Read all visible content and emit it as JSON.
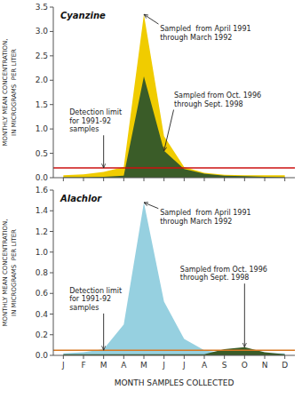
{
  "chart_data": [
    {
      "type": "area",
      "title": "Cyanzine",
      "categories": [
        "J",
        "F",
        "M",
        "A",
        "M",
        "J",
        "J",
        "A",
        "S",
        "O",
        "N",
        "D"
      ],
      "series": [
        {
          "name": "Sampled  from April 1991\nthrough March 1992",
          "color": "#F0CC00",
          "values": [
            0.05,
            0.07,
            0.12,
            0.22,
            3.35,
            0.85,
            0.22,
            0.1,
            0.06,
            0.05,
            0.05,
            0.05
          ]
        },
        {
          "name": "Sampled from Oct. 1996\nthrough Sept. 1998",
          "color": "#3A5C28",
          "values": [
            0.01,
            0.01,
            0.02,
            0.04,
            2.08,
            0.55,
            0.18,
            0.08,
            0.04,
            0.03,
            0.02,
            0.01
          ]
        }
      ],
      "detection_limit": {
        "value": 0.2,
        "label": "Detection limit\nfor 1991-92\nsamples",
        "color": "#CC1111"
      },
      "y_label": "MONTHLY MEAN CONCENTRATION,\nIN MICROGRAMS  PER LITER",
      "ylim": [
        0,
        3.5
      ],
      "yticks": [
        {
          "value": 0,
          "label": "0.0"
        },
        0.5,
        {
          "value": 1.0,
          "label": "1.0"
        },
        1.5,
        {
          "value": 2.0,
          "label": "2.0"
        },
        2.5,
        {
          "value": 3.0,
          "label": "3.0"
        },
        3.5
      ],
      "grid": false,
      "tick_labels": "y"
    },
    {
      "type": "area",
      "title": "Alachlor",
      "categories": [
        "J",
        "F",
        "M",
        "A",
        "M",
        "J",
        "J",
        "A",
        "S",
        "O",
        "N",
        "D"
      ],
      "series": [
        {
          "name": "Sampled  from April 1991\nthrough March 1992",
          "color": "#96D0E0",
          "values": [
            0.02,
            0.03,
            0.06,
            0.3,
            1.48,
            0.52,
            0.16,
            0.05,
            0.02,
            0.02,
            0.02,
            0.02
          ]
        },
        {
          "name": "Sampled from Oct. 1996\nthrough Sept. 1998",
          "color": "#3A5C28",
          "values": [
            0.01,
            0.01,
            0.01,
            0.01,
            0.01,
            0.01,
            0.01,
            0.01,
            0.06,
            0.08,
            0.03,
            0.01
          ]
        }
      ],
      "detection_limit": {
        "value": 0.05,
        "label": "Detection limit\nfor 1991-92\nsamples",
        "color": "#D87820"
      },
      "y_label": "MONTHLY MEAN CONCENTRATION,\nIN MICROGRAMS  PER LITER",
      "x_label": "MONTH SAMPLES COLLECTED",
      "ylim": [
        0,
        1.6
      ],
      "yticks": [
        {
          "value": 0,
          "label": "0.0"
        },
        0.2,
        0.4,
        0.6,
        0.8,
        {
          "value": 1.0,
          "label": "1.0"
        },
        1.2,
        1.4,
        1.6
      ],
      "grid": false
    }
  ]
}
